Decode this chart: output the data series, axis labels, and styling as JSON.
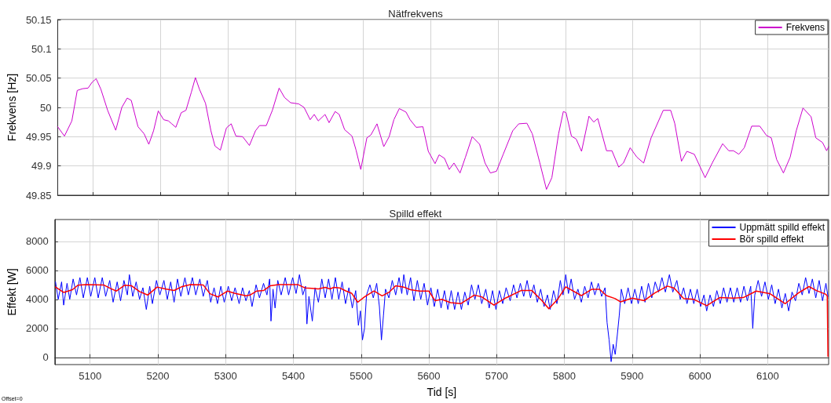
{
  "chart_data": [
    {
      "type": "line",
      "title": "Nätfrekvens",
      "ylabel": "Frekvens [Hz]",
      "xlim": [
        5048,
        6190
      ],
      "xticks": [
        5100,
        5200,
        5300,
        5400,
        5500,
        5600,
        5700,
        5800,
        5900,
        6000,
        6100
      ],
      "ylim": [
        49.85,
        50.15
      ],
      "yticks": [
        49.85,
        49.9,
        49.95,
        50,
        50.05,
        50.1,
        50.15
      ],
      "tick_labels": "y",
      "grid": true,
      "legend": "top right",
      "marker": "none",
      "line_style": "solid",
      "series": [
        {
          "name": "Frekvens",
          "color": "#cc00cc",
          "x": [
            5048,
            5058,
            5069,
            5077,
            5085,
            5093,
            5099,
            5105,
            5112,
            5122,
            5134,
            5143,
            5151,
            5157,
            5167,
            5176,
            5183,
            5190,
            5197,
            5205,
            5212,
            5217,
            5223,
            5231,
            5238,
            5246,
            5252,
            5258,
            5267,
            5275,
            5281,
            5289,
            5298,
            5305,
            5312,
            5322,
            5332,
            5341,
            5347,
            5357,
            5366,
            5376,
            5384,
            5393,
            5405,
            5413,
            5422,
            5428,
            5434,
            5444,
            5450,
            5459,
            5465,
            5473,
            5484,
            5490,
            5497,
            5506,
            5512,
            5521,
            5531,
            5539,
            5546,
            5554,
            5564,
            5570,
            5579,
            5589,
            5597,
            5607,
            5613,
            5621,
            5628,
            5635,
            5644,
            5652,
            5662,
            5673,
            5681,
            5689,
            5698,
            5708,
            5722,
            5731,
            5743,
            5751,
            5762,
            5772,
            5780,
            5790,
            5797,
            5801,
            5809,
            5816,
            5824,
            5835,
            5842,
            5848,
            5861,
            5869,
            5879,
            5886,
            5896,
            5906,
            5916,
            5927,
            5945,
            5956,
            5962,
            5972,
            5980,
            5991,
            6007,
            6018,
            6033,
            6042,
            6049,
            6057,
            6065,
            6076,
            6088,
            6098,
            6105,
            6113,
            6123,
            6133,
            6142,
            6152,
            6164,
            6171,
            6181,
            6187,
            6190
          ],
          "values": [
            49.967,
            49.951,
            49.977,
            50.029,
            50.032,
            50.033,
            50.043,
            50.049,
            50.031,
            49.995,
            49.961,
            50.0,
            50.016,
            50.012,
            49.967,
            49.955,
            49.937,
            49.96,
            49.994,
            49.979,
            49.977,
            49.972,
            49.966,
            49.991,
            49.995,
            50.026,
            50.051,
            50.031,
            50.007,
            49.96,
            49.934,
            49.927,
            49.965,
            49.972,
            49.951,
            49.95,
            49.935,
            49.96,
            49.969,
            49.969,
            49.995,
            50.033,
            50.017,
            50.008,
            50.006,
            50.0,
            49.979,
            49.988,
            49.977,
            49.988,
            49.974,
            49.993,
            49.988,
            49.962,
            49.951,
            49.927,
            49.894,
            49.948,
            49.953,
            49.972,
            49.933,
            49.95,
            49.979,
            49.998,
            49.992,
            49.979,
            49.966,
            49.967,
            49.925,
            49.904,
            49.919,
            49.913,
            49.894,
            49.905,
            49.888,
            49.915,
            49.95,
            49.937,
            49.905,
            49.888,
            49.891,
            49.92,
            49.96,
            49.972,
            49.973,
            49.955,
            49.906,
            49.86,
            49.88,
            49.955,
            49.993,
            49.991,
            49.951,
            49.946,
            49.925,
            49.985,
            49.975,
            49.981,
            49.926,
            49.926,
            49.898,
            49.905,
            49.931,
            49.915,
            49.905,
            49.948,
            49.995,
            49.995,
            49.973,
            49.908,
            49.925,
            49.92,
            49.88,
            49.906,
            49.938,
            49.926,
            49.926,
            49.92,
            49.931,
            49.968,
            49.968,
            49.952,
            49.948,
            49.911,
            49.888,
            49.915,
            49.96,
            49.999,
            49.984,
            49.948,
            49.94,
            49.926,
            49.933
          ]
        }
      ]
    },
    {
      "type": "line",
      "title": "Spilld effekt",
      "xlabel": "Tid [s]",
      "ylabel": "Effekt [W]",
      "xlim": [
        5048,
        6190
      ],
      "xticks": [
        5100,
        5200,
        5300,
        5400,
        5500,
        5600,
        5700,
        5800,
        5900,
        6000,
        6100
      ],
      "ylim": [
        -500,
        9500
      ],
      "yticks": [
        0,
        2000,
        4000,
        6000,
        8000
      ],
      "grid": true,
      "legend": "top right",
      "marker": "none",
      "line_style": "solid",
      "annotations": [
        "Offset=0"
      ],
      "series": [
        {
          "name": "Uppmätt spilld effekt",
          "color": "#0000ff",
          "x": [
            5049,
            5053,
            5058,
            5061,
            5066,
            5070,
            5075,
            5080,
            5085,
            5090,
            5096,
            5101,
            5107,
            5112,
            5118,
            5123,
            5129,
            5134,
            5140,
            5145,
            5150,
            5155,
            5158,
            5163,
            5168,
            5173,
            5178,
            5183,
            5188,
            5192,
            5198,
            5203,
            5209,
            5214,
            5219,
            5224,
            5229,
            5234,
            5240,
            5245,
            5251,
            5256,
            5262,
            5267,
            5273,
            5278,
            5283,
            5288,
            5293,
            5298,
            5304,
            5309,
            5314,
            5320,
            5325,
            5330,
            5335,
            5339,
            5345,
            5350,
            5356,
            5361,
            5365,
            5367,
            5370,
            5373,
            5377,
            5382,
            5388,
            5393,
            5399,
            5404,
            5409,
            5414,
            5418,
            5420,
            5423,
            5428,
            5432,
            5437,
            5442,
            5447,
            5452,
            5457,
            5462,
            5467,
            5472,
            5477,
            5482,
            5487,
            5492,
            5496,
            5499,
            5502,
            5505,
            5508,
            5513,
            5518,
            5523,
            5527,
            5530,
            5533,
            5536,
            5541,
            5546,
            5551,
            5556,
            5560,
            5563,
            5568,
            5573,
            5578,
            5583,
            5588,
            5593,
            5598,
            5603,
            5608,
            5613,
            5618,
            5623,
            5628,
            5633,
            5638,
            5643,
            5648,
            5653,
            5658,
            5663,
            5668,
            5673,
            5678,
            5684,
            5689,
            5694,
            5699,
            5704,
            5709,
            5714,
            5720,
            5725,
            5730,
            5735,
            5740,
            5745,
            5750,
            5755,
            5760,
            5765,
            5770,
            5775,
            5779,
            5784,
            5789,
            5794,
            5798,
            5802,
            5806,
            5810,
            5815,
            5820,
            5825,
            5830,
            5835,
            5840,
            5845,
            5850,
            5855,
            5860,
            5863,
            5866,
            5869,
            5872,
            5875,
            5878,
            5881,
            5884,
            5889,
            5894,
            5899,
            5904,
            5909,
            5914,
            5919,
            5924,
            5929,
            5934,
            5939,
            5944,
            5949,
            5955,
            5960,
            5966,
            5971,
            5976,
            5981,
            5986,
            5991,
            5996,
            6001,
            6006,
            6010,
            6015,
            6020,
            6025,
            6030,
            6035,
            6040,
            6045,
            6050,
            6055,
            6060,
            6065,
            6070,
            6075,
            6078,
            6081,
            6086,
            6091,
            6096,
            6101,
            6106,
            6111,
            6116,
            6121,
            6126,
            6131,
            6136,
            6141,
            6146,
            6151,
            6156,
            6161,
            6166,
            6171,
            6176,
            6181,
            6186,
            6189
          ],
          "values": [
            5200,
            4000,
            5200,
            3600,
            5100,
            4000,
            5400,
            4300,
            5500,
            4100,
            5500,
            4200,
            5500,
            4100,
            5500,
            4200,
            5300,
            3800,
            5200,
            3900,
            5300,
            4300,
            5700,
            4200,
            5200,
            4000,
            4800,
            3300,
            4900,
            3700,
            5300,
            4300,
            5300,
            4000,
            5200,
            3800,
            5400,
            4200,
            5500,
            4300,
            5500,
            4300,
            5400,
            4200,
            5300,
            3800,
            4800,
            3700,
            4900,
            3800,
            4900,
            3900,
            4800,
            3700,
            4800,
            3900,
            4600,
            3500,
            5000,
            4100,
            5100,
            4300,
            5400,
            2500,
            4700,
            3400,
            5300,
            4300,
            5500,
            4300,
            5500,
            4400,
            5700,
            4300,
            4900,
            2300,
            4200,
            2500,
            4800,
            3800,
            5400,
            4100,
            5400,
            4000,
            5500,
            4000,
            5200,
            3700,
            4800,
            3400,
            4600,
            2200,
            3200,
            1200,
            2000,
            4300,
            5000,
            4100,
            5100,
            3500,
            1200,
            2900,
            4700,
            4100,
            5300,
            4300,
            5500,
            4400,
            5700,
            4300,
            5500,
            3900,
            5300,
            4000,
            5100,
            3600,
            4800,
            3500,
            4700,
            3400,
            4600,
            3300,
            4600,
            3300,
            4500,
            3300,
            4500,
            3600,
            5000,
            4000,
            5000,
            3700,
            4700,
            3400,
            4600,
            3300,
            4600,
            3700,
            4800,
            3900,
            5000,
            4100,
            5100,
            4200,
            5300,
            4100,
            5000,
            3800,
            4700,
            3500,
            4300,
            3300,
            4600,
            3700,
            5300,
            4300,
            5700,
            4400,
            5400,
            4000,
            4700,
            3800,
            4900,
            4100,
            5200,
            4300,
            5100,
            4200,
            4800,
            2400,
            1200,
            -300,
            900,
            200,
            1500,
            2900,
            4700,
            3700,
            4800,
            3700,
            4700,
            3700,
            4900,
            3800,
            5100,
            4100,
            5200,
            4500,
            5500,
            4500,
            5700,
            4500,
            5300,
            4000,
            4800,
            3700,
            4700,
            3700,
            4700,
            3500,
            4300,
            3200,
            4300,
            3500,
            4600,
            3700,
            4800,
            3800,
            4800,
            3800,
            4800,
            3800,
            4900,
            3900,
            4900,
            2000,
            4300,
            5300,
            4200,
            5200,
            4000,
            5000,
            3700,
            4700,
            3400,
            4400,
            3200,
            4500,
            3900,
            5100,
            4300,
            5500,
            4400,
            5400,
            4100,
            5300,
            3900,
            5100,
            4200
          ]
        },
        {
          "name": "Bör spilld effekt",
          "color": "#ff0000",
          "x": [
            5049,
            5061,
            5074,
            5082,
            5094,
            5120,
            5130,
            5139,
            5151,
            5161,
            5173,
            5185,
            5199,
            5211,
            5224,
            5236,
            5248,
            5267,
            5277,
            5289,
            5303,
            5313,
            5330,
            5336,
            5346,
            5356,
            5366,
            5378,
            5407,
            5417,
            5427,
            5437,
            5447,
            5454,
            5460,
            5468,
            5478,
            5486,
            5495,
            5505,
            5519,
            5531,
            5541,
            5551,
            5563,
            5573,
            5586,
            5600,
            5609,
            5619,
            5632,
            5647,
            5667,
            5678,
            5696,
            5713,
            5736,
            5752,
            5767,
            5777,
            5790,
            5802,
            5825,
            5840,
            5852,
            5862,
            5875,
            5883,
            5900,
            5918,
            5933,
            5952,
            5962,
            5976,
            5991,
            6010,
            6029,
            6049,
            6064,
            6083,
            6103,
            6126,
            6145,
            6161,
            6172,
            6186,
            6188,
            6189
          ],
          "values": [
            4844,
            4477,
            4660,
            4973,
            5010,
            4991,
            4753,
            4569,
            4973,
            4936,
            4532,
            4294,
            4844,
            4716,
            4606,
            4881,
            5010,
            4991,
            4386,
            4165,
            4569,
            4422,
            4239,
            4294,
            4569,
            4606,
            4936,
            5010,
            5010,
            4789,
            4753,
            4716,
            4826,
            4716,
            4826,
            4789,
            4569,
            4422,
            3799,
            4165,
            4569,
            4239,
            4477,
            4936,
            4844,
            4660,
            4569,
            4567,
            3910,
            3996,
            3771,
            3702,
            4290,
            4169,
            3598,
            4083,
            4602,
            4602,
            3910,
            3356,
            3996,
            4861,
            4256,
            4688,
            4688,
            4256,
            4048,
            3823,
            4083,
            3910,
            4429,
            4913,
            4775,
            4048,
            3996,
            3564,
            4117,
            4083,
            4117,
            4567,
            4394,
            3702,
            4429,
            4878,
            4602,
            4342,
            4221,
            69
          ]
        }
      ]
    }
  ]
}
